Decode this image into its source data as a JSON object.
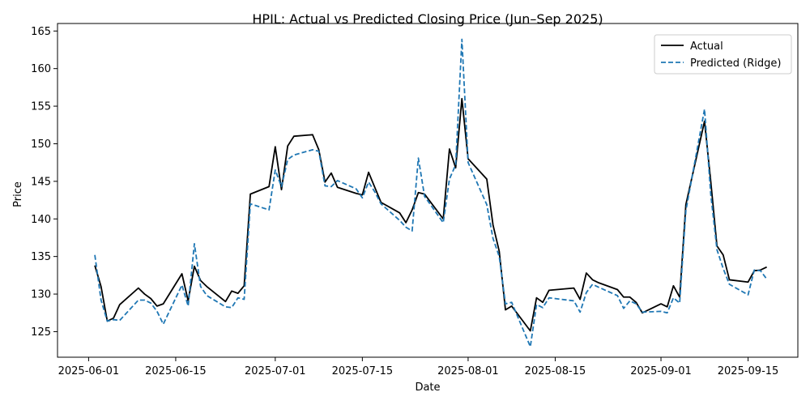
{
  "chart_data": {
    "type": "line",
    "title": "HPIL: Actual vs Predicted Closing Price (Jun–Sep 2025)",
    "xlabel": "Date",
    "ylabel": "Price",
    "x_ticks": [
      "2025-06-01",
      "2025-06-15",
      "2025-07-01",
      "2025-07-15",
      "2025-08-01",
      "2025-08-15",
      "2025-09-01",
      "2025-09-15"
    ],
    "y_ticks": [
      125,
      130,
      135,
      140,
      145,
      150,
      155,
      160,
      165
    ],
    "xlim": [
      "2025-05-27",
      "2025-09-23"
    ],
    "ylim": [
      121.6,
      166.0
    ],
    "grid": false,
    "legend_position": "top-right",
    "x": [
      "2025-06-02",
      "2025-06-03",
      "2025-06-04",
      "2025-06-05",
      "2025-06-06",
      "2025-06-09",
      "2025-06-10",
      "2025-06-11",
      "2025-06-12",
      "2025-06-13",
      "2025-06-16",
      "2025-06-17",
      "2025-06-18",
      "2025-06-19",
      "2025-06-20",
      "2025-06-23",
      "2025-06-24",
      "2025-06-25",
      "2025-06-26",
      "2025-06-27",
      "2025-06-30",
      "2025-07-01",
      "2025-07-02",
      "2025-07-03",
      "2025-07-04",
      "2025-07-07",
      "2025-07-08",
      "2025-07-09",
      "2025-07-10",
      "2025-07-11",
      "2025-07-14",
      "2025-07-15",
      "2025-07-16",
      "2025-07-17",
      "2025-07-18",
      "2025-07-21",
      "2025-07-22",
      "2025-07-23",
      "2025-07-24",
      "2025-07-25",
      "2025-07-28",
      "2025-07-29",
      "2025-07-30",
      "2025-07-31",
      "2025-08-01",
      "2025-08-04",
      "2025-08-05",
      "2025-08-06",
      "2025-08-07",
      "2025-08-08",
      "2025-08-11",
      "2025-08-12",
      "2025-08-13",
      "2025-08-14",
      "2025-08-18",
      "2025-08-19",
      "2025-08-20",
      "2025-08-21",
      "2025-08-22",
      "2025-08-25",
      "2025-08-26",
      "2025-08-27",
      "2025-08-28",
      "2025-08-29",
      "2025-09-01",
      "2025-09-02",
      "2025-09-03",
      "2025-09-04",
      "2025-09-05",
      "2025-09-08",
      "2025-09-09",
      "2025-09-10",
      "2025-09-11",
      "2025-09-12",
      "2025-09-15",
      "2025-09-16",
      "2025-09-17",
      "2025-09-18"
    ],
    "series": [
      {
        "name": "Actual",
        "color": "#000000",
        "style": "solid",
        "values": [
          133.8,
          131.0,
          126.4,
          126.8,
          128.6,
          130.8,
          130.0,
          129.4,
          128.4,
          128.7,
          132.7,
          129.1,
          133.7,
          131.8,
          131.0,
          129.0,
          130.4,
          130.1,
          131.1,
          143.3,
          144.3,
          149.6,
          143.9,
          149.7,
          151.0,
          151.2,
          149.2,
          144.9,
          146.1,
          144.2,
          143.4,
          143.2,
          146.2,
          144.2,
          142.2,
          140.8,
          139.5,
          141.2,
          143.5,
          143.3,
          140.0,
          149.3,
          146.8,
          156.0,
          148.0,
          145.3,
          139.2,
          135.7,
          127.9,
          128.4,
          125.1,
          129.5,
          128.9,
          130.5,
          130.8,
          129.3,
          132.8,
          131.9,
          131.5,
          130.6,
          129.6,
          129.6,
          128.9,
          127.5,
          128.7,
          128.3,
          131.1,
          129.6,
          141.9,
          153.0,
          145.0,
          136.4,
          135.2,
          131.9,
          131.6,
          133.1,
          133.2,
          133.6
        ]
      },
      {
        "name": "Predicted (Ridge)",
        "color": "#1f77b4",
        "style": "dashed",
        "values": [
          135.2,
          129.2,
          126.4,
          126.6,
          126.5,
          129.2,
          129.2,
          128.8,
          127.7,
          126.0,
          131.2,
          128.4,
          136.7,
          131.0,
          129.8,
          128.3,
          128.2,
          129.5,
          129.3,
          142.0,
          141.2,
          146.5,
          144.3,
          147.9,
          148.5,
          149.2,
          149.0,
          144.4,
          144.3,
          145.1,
          144.0,
          142.8,
          144.9,
          143.6,
          142.0,
          139.8,
          138.9,
          138.4,
          148.1,
          143.0,
          139.5,
          145.3,
          147.2,
          163.9,
          147.5,
          141.9,
          137.4,
          135.0,
          128.7,
          128.9,
          123.0,
          128.6,
          128.2,
          129.5,
          129.1,
          127.6,
          130.2,
          131.3,
          130.9,
          129.8,
          128.1,
          129.1,
          128.7,
          127.6,
          127.7,
          127.5,
          129.5,
          128.8,
          141.1,
          154.6,
          143.3,
          135.9,
          133.4,
          131.3,
          129.9,
          133.2,
          133.1,
          132.0
        ]
      }
    ]
  }
}
